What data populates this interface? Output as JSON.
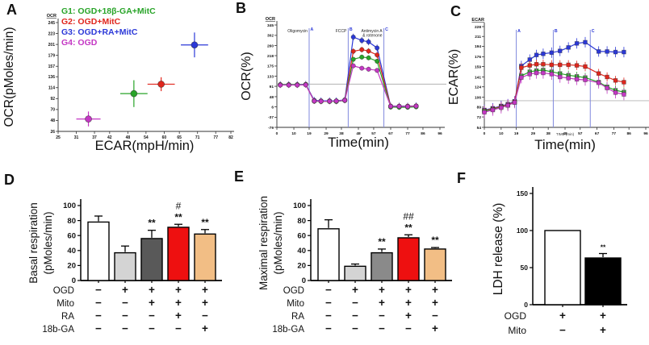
{
  "panels": {
    "A": {
      "letter": "A"
    },
    "B": {
      "letter": "B"
    },
    "C": {
      "letter": "C"
    },
    "D": {
      "letter": "D"
    },
    "E": {
      "letter": "E"
    },
    "F": {
      "letter": "F"
    }
  },
  "chart_data": [
    {
      "panel": "A",
      "type": "scatter",
      "xlabel": "ECAR(mpH/min)",
      "ylabel": "OCR(pMoles/min)",
      "corner_label": "OCR",
      "x_ticks": [
        25,
        31,
        37,
        42,
        48,
        54,
        60,
        65,
        71,
        77,
        82
      ],
      "y_ticks": [
        26,
        48,
        70,
        92,
        114,
        136,
        157,
        179,
        201,
        223,
        245
      ],
      "xlim": [
        25,
        82
      ],
      "ylim": [
        26,
        245
      ],
      "legend": [
        {
          "label": "G1: OGD+18β-GA+MitC",
          "color": "#28a428"
        },
        {
          "label": "G2: OGD+MitC",
          "color": "#e0261d"
        },
        {
          "label": "G3: OGD+RA+MitC",
          "color": "#2b38d8"
        },
        {
          "label": "G4:  OGD",
          "color": "#c437c4"
        }
      ],
      "points": [
        {
          "group": "G1",
          "x": 50,
          "y": 102,
          "xerr": 4.5,
          "yerr": 27,
          "color": "#28a428"
        },
        {
          "group": "G2",
          "x": 59,
          "y": 121,
          "xerr": 4.5,
          "yerr": 14,
          "color": "#e0261d"
        },
        {
          "group": "G3",
          "x": 70,
          "y": 200,
          "xerr": 4.5,
          "yerr": 25,
          "color": "#2b38d8"
        },
        {
          "group": "G4",
          "x": 35,
          "y": 51,
          "xerr": 4.0,
          "yerr": 15,
          "color": "#c437c4"
        }
      ]
    },
    {
      "panel": "B",
      "type": "line",
      "marker": "circle",
      "xlabel": "Time(min)",
      "ylabel": "OCR(%)",
      "corner_label": "OCR",
      "x_ticks": [
        0,
        10,
        19,
        29,
        38,
        48,
        57,
        67,
        77,
        86,
        96
      ],
      "y_ticks": [
        -79,
        -37,
        6,
        48,
        91,
        133,
        175,
        218,
        260,
        302,
        345
      ],
      "baseline": 100,
      "events": [
        {
          "marker": "A",
          "x": 19,
          "label": "Oligomycin"
        },
        {
          "marker": "B",
          "x": 42,
          "label": "FCCP"
        },
        {
          "marker": "C",
          "x": 63,
          "label": "Antimycin A\n& rotenone"
        }
      ],
      "x": [
        2,
        7,
        12,
        17,
        22,
        26,
        31,
        35,
        40,
        45,
        50,
        54,
        59,
        67,
        72,
        77,
        82
      ],
      "series": [
        {
          "name": "G3: OGD+RA+MitC",
          "color": "#2b38d8",
          "err": 14,
          "values": [
            98,
            98,
            98,
            99,
            33,
            31,
            31,
            31,
            35,
            295,
            281,
            275,
            250,
            9,
            9,
            9,
            10
          ]
        },
        {
          "name": "G2: OGD+MitC",
          "color": "#e0261d",
          "err": 12,
          "values": [
            97,
            97,
            97,
            98,
            30,
            29,
            29,
            29,
            33,
            236,
            243,
            237,
            221,
            8,
            8,
            8,
            9
          ]
        },
        {
          "name": "G1: OGD+18β-GA+MitC",
          "color": "#28a428",
          "err": 10,
          "values": [
            97,
            97,
            97,
            98,
            29,
            28,
            28,
            28,
            32,
            203,
            212,
            209,
            195,
            5,
            4,
            4,
            6
          ]
        },
        {
          "name": "G4: OGD",
          "color": "#c437c4",
          "err": 10,
          "values": [
            96,
            96,
            96,
            97,
            30,
            29,
            29,
            30,
            33,
            176,
            166,
            162,
            157,
            8,
            8,
            7,
            9
          ]
        }
      ]
    },
    {
      "panel": "C",
      "type": "line",
      "marker": "square",
      "xlabel": "Time(min)",
      "sub_xlabel": "TIME (min)",
      "ylabel": "ECAR(%)",
      "corner_label": "ECAR",
      "x_ticks": [
        0,
        10,
        19,
        29,
        38,
        48,
        57,
        67,
        77,
        86,
        96
      ],
      "y_ticks": [
        54,
        72,
        89,
        106,
        124,
        141,
        159,
        176,
        194,
        211,
        228
      ],
      "baseline": 100,
      "events": [
        {
          "marker": "A",
          "x": 19,
          "label": ""
        },
        {
          "marker": "B",
          "x": 41,
          "label": ""
        },
        {
          "marker": "C",
          "x": 63,
          "label": ""
        }
      ],
      "x": [
        0,
        5,
        10,
        14,
        18,
        22,
        27,
        31,
        35,
        40,
        45,
        50,
        55,
        60,
        68,
        73,
        78,
        83
      ],
      "series": [
        {
          "name": "G3: OGD+RA+MitC",
          "color": "#2b38d8",
          "err": 9,
          "values": [
            84,
            87,
            91,
            94,
            99,
            160,
            171,
            179,
            181,
            183,
            186,
            192,
            199,
            201,
            185,
            185,
            184,
            184
          ]
        },
        {
          "name": "G2: OGD+MitC",
          "color": "#e0261d",
          "err": 8,
          "values": [
            83,
            86,
            90,
            93,
            98,
            157,
            161,
            163,
            163,
            162,
            162,
            162,
            161,
            159,
            147,
            141,
            135,
            132
          ]
        },
        {
          "name": "G1: OGD+18β-GA+MitC",
          "color": "#28a428",
          "err": 8,
          "values": [
            82,
            85,
            89,
            92,
            97,
            143,
            150,
            152,
            153,
            150,
            147,
            144,
            142,
            140,
            132,
            124,
            118,
            115
          ]
        },
        {
          "name": "G4: OGD",
          "color": "#c437c4",
          "err": 10,
          "values": [
            80,
            84,
            88,
            92,
            97,
            140,
            146,
            148,
            148,
            146,
            141,
            139,
            137,
            136,
            131,
            122,
            114,
            111
          ]
        }
      ]
    },
    {
      "panel": "D",
      "type": "bar",
      "ylabel_lines": [
        "Basal respiration",
        "(pMoles/min)"
      ],
      "y_ticks": [
        0,
        20,
        40,
        60,
        80,
        100
      ],
      "ylim": [
        0,
        100
      ],
      "bars": [
        {
          "value": 78,
          "err": 8,
          "fill": "#ffffff",
          "sig": ""
        },
        {
          "value": 37,
          "err": 9,
          "fill": "#d4d4d4",
          "sig": ""
        },
        {
          "value": 56,
          "err": 11,
          "fill": "#595959",
          "sig": "**"
        },
        {
          "value": 71,
          "err": 4,
          "fill": "#ee1010",
          "sig": "**",
          "sig2": "#"
        },
        {
          "value": 62,
          "err": 6,
          "fill": "#f2be85",
          "sig": "**"
        }
      ],
      "condition_rows": [
        {
          "label": "OGD",
          "values": [
            "−",
            "+",
            "+",
            "+",
            "+"
          ]
        },
        {
          "label": "Mito",
          "values": [
            "−",
            "−",
            "+",
            "+",
            "+"
          ]
        },
        {
          "label": "RA",
          "values": [
            "−",
            "−",
            "−",
            "+",
            "−"
          ]
        },
        {
          "label": "18b-GA",
          "values": [
            "−",
            "−",
            "−",
            "−",
            "+"
          ]
        }
      ]
    },
    {
      "panel": "E",
      "type": "bar",
      "ylabel_lines": [
        "Maximal respiration",
        "(pMoles/min)"
      ],
      "y_ticks": [
        0,
        20,
        40,
        60,
        80,
        100
      ],
      "ylim": [
        0,
        100
      ],
      "bars": [
        {
          "value": 69,
          "err": 12,
          "fill": "#ffffff",
          "sig": ""
        },
        {
          "value": 19,
          "err": 3,
          "fill": "#d4d4d4",
          "sig": ""
        },
        {
          "value": 37,
          "err": 5,
          "fill": "#8a8a8a",
          "sig": "**"
        },
        {
          "value": 57,
          "err": 4,
          "fill": "#ee1010",
          "sig": "**",
          "sig2": "##"
        },
        {
          "value": 42,
          "err": 2,
          "fill": "#f2be85",
          "sig": "**"
        }
      ],
      "condition_rows": [
        {
          "label": "OGD",
          "values": [
            "−",
            "+",
            "+",
            "+",
            "+"
          ]
        },
        {
          "label": "Mito",
          "values": [
            "−",
            "−",
            "+",
            "+",
            "+"
          ]
        },
        {
          "label": "RA",
          "values": [
            "−",
            "−",
            "−",
            "+",
            "−"
          ]
        },
        {
          "label": "18b-GA",
          "values": [
            "−",
            "−",
            "−",
            "−",
            "+"
          ]
        }
      ]
    },
    {
      "panel": "F",
      "type": "bar",
      "ylabel_lines": [
        "LDH release (%)"
      ],
      "y_ticks": [
        0,
        50,
        100,
        150
      ],
      "ylim": [
        0,
        150
      ],
      "bars": [
        {
          "value": 100,
          "err": 0,
          "fill": "#ffffff",
          "sig": ""
        },
        {
          "value": 63,
          "err": 6,
          "fill": "#000000",
          "sig": "**"
        }
      ],
      "condition_rows": [
        {
          "label": "OGD",
          "values": [
            "+",
            "+"
          ]
        },
        {
          "label": "Mito",
          "values": [
            "−",
            "+"
          ]
        }
      ]
    }
  ]
}
